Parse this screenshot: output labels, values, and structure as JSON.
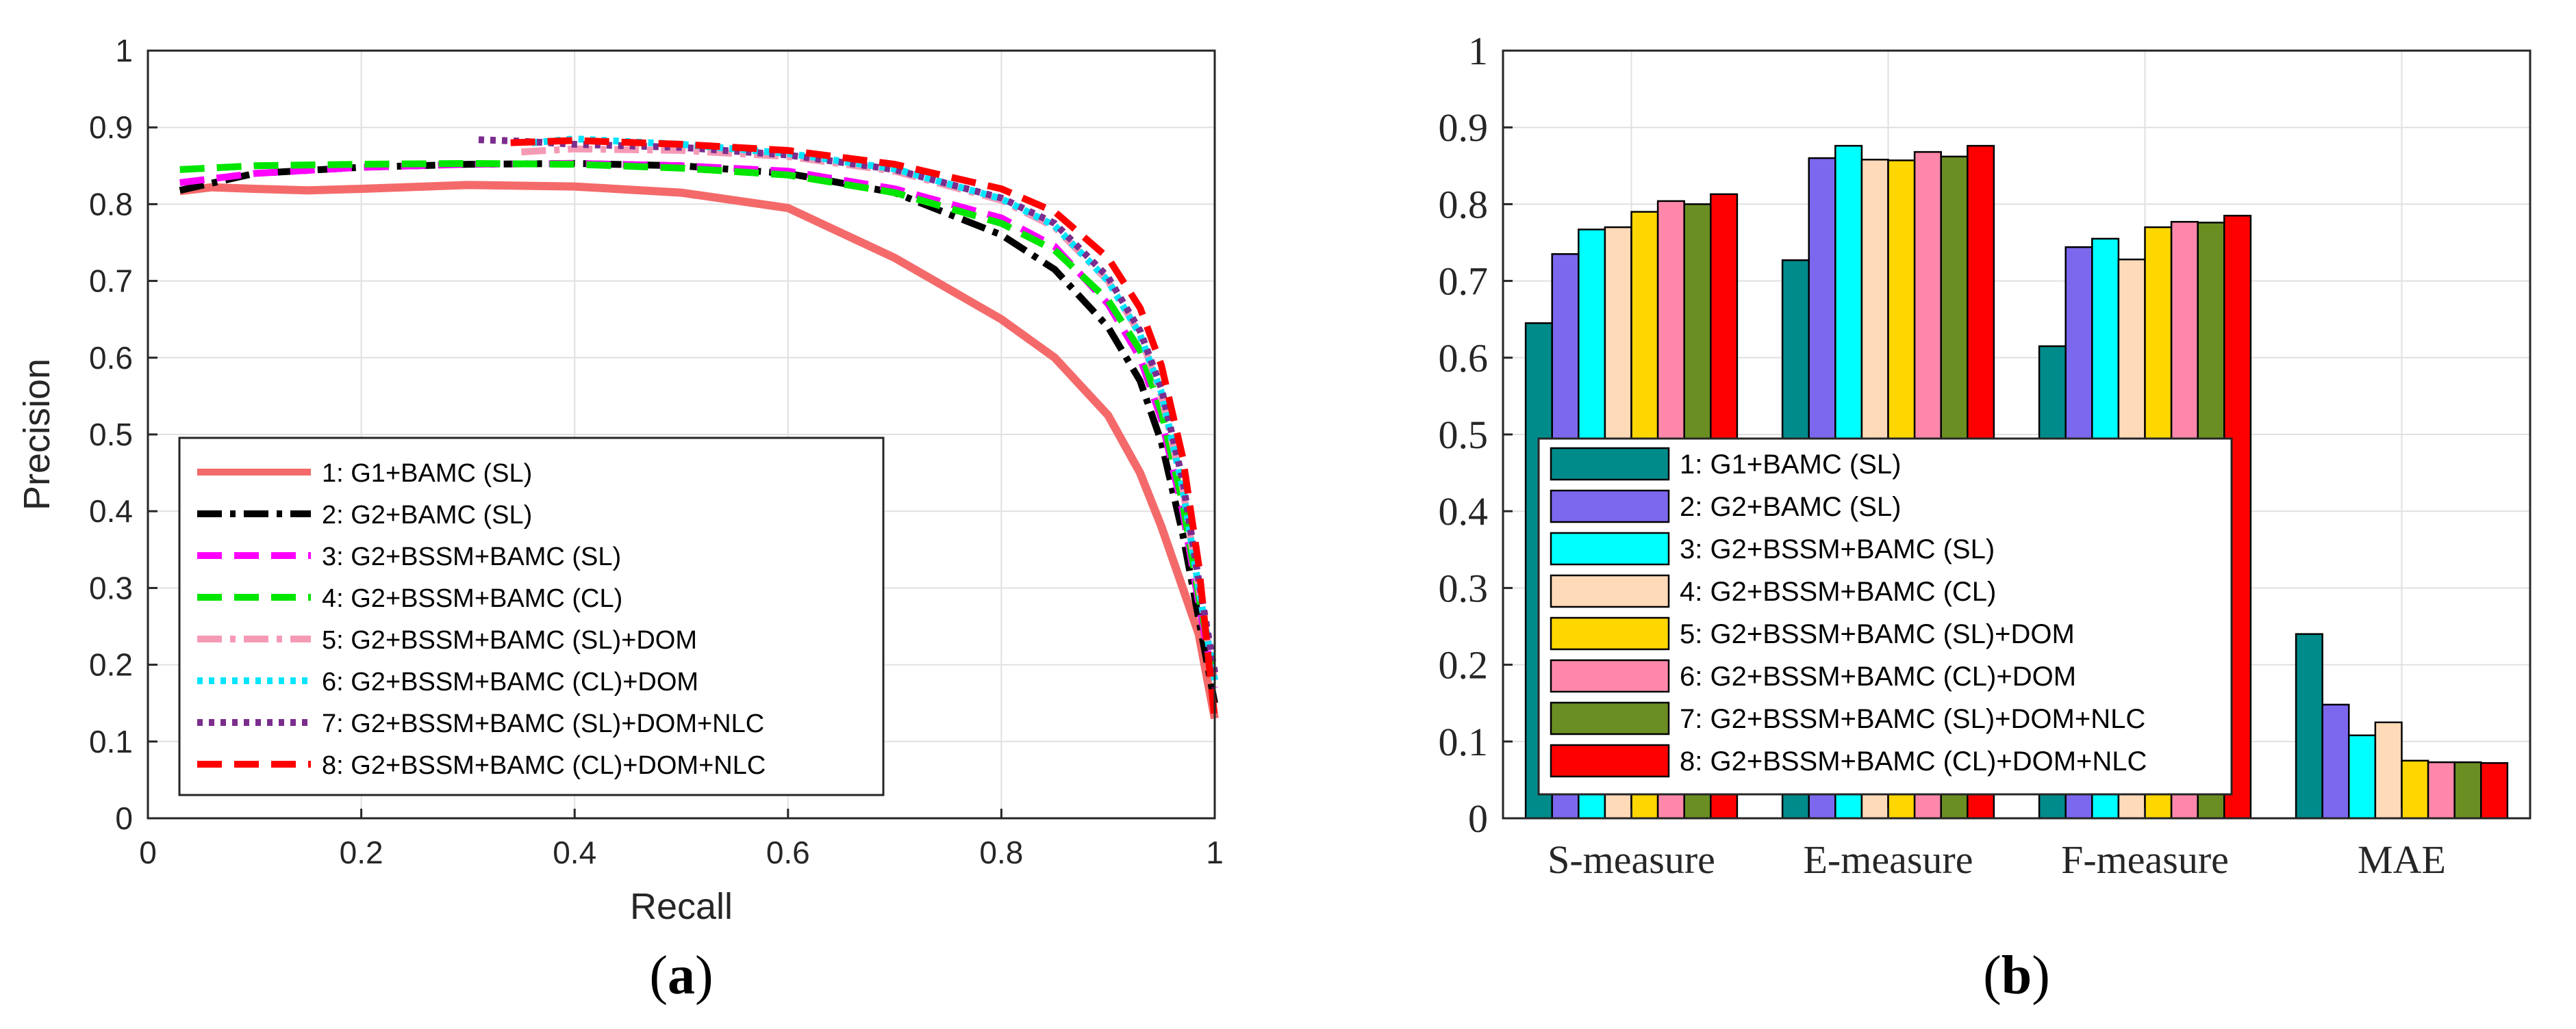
{
  "chart_data": [
    {
      "type": "line",
      "caption": "a",
      "xlabel": "Recall",
      "ylabel": "Precision",
      "xlim": [
        0,
        1
      ],
      "ylim": [
        0,
        1
      ],
      "xticks": [
        "0",
        "0.2",
        "0.4",
        "0.6",
        "0.8",
        "1"
      ],
      "yticks": [
        "0",
        "0.1",
        "0.2",
        "0.3",
        "0.4",
        "0.5",
        "0.6",
        "0.7",
        "0.8",
        "0.9",
        "1"
      ],
      "grid": true,
      "legend_position": "bottom-left",
      "series": [
        {
          "name": "1: G1+BAMC (SL)",
          "color": "#f46a6a",
          "dash": "solid",
          "points": [
            [
              0.03,
              0.817
            ],
            [
              0.06,
              0.822
            ],
            [
              0.1,
              0.82
            ],
            [
              0.15,
              0.818
            ],
            [
              0.2,
              0.82
            ],
            [
              0.3,
              0.825
            ],
            [
              0.4,
              0.823
            ],
            [
              0.5,
              0.815
            ],
            [
              0.6,
              0.795
            ],
            [
              0.7,
              0.73
            ],
            [
              0.8,
              0.65
            ],
            [
              0.85,
              0.6
            ],
            [
              0.9,
              0.525
            ],
            [
              0.93,
              0.45
            ],
            [
              0.95,
              0.38
            ],
            [
              0.97,
              0.3
            ],
            [
              0.985,
              0.24
            ],
            [
              1.0,
              0.13
            ]
          ]
        },
        {
          "name": "2: G2+BAMC (SL)",
          "color": "#000000",
          "dash": "dashdot",
          "points": [
            [
              0.03,
              0.818
            ],
            [
              0.1,
              0.84
            ],
            [
              0.2,
              0.848
            ],
            [
              0.3,
              0.852
            ],
            [
              0.4,
              0.853
            ],
            [
              0.5,
              0.85
            ],
            [
              0.6,
              0.84
            ],
            [
              0.7,
              0.815
            ],
            [
              0.8,
              0.76
            ],
            [
              0.85,
              0.715
            ],
            [
              0.9,
              0.64
            ],
            [
              0.93,
              0.57
            ],
            [
              0.95,
              0.49
            ],
            [
              0.97,
              0.37
            ],
            [
              0.985,
              0.26
            ],
            [
              1.0,
              0.15
            ]
          ]
        },
        {
          "name": "3: G2+BSSM+BAMC (SL)",
          "color": "#ff00ff",
          "dash": "dash",
          "points": [
            [
              0.03,
              0.828
            ],
            [
              0.1,
              0.84
            ],
            [
              0.2,
              0.848
            ],
            [
              0.3,
              0.852
            ],
            [
              0.4,
              0.853
            ],
            [
              0.5,
              0.85
            ],
            [
              0.6,
              0.843
            ],
            [
              0.7,
              0.82
            ],
            [
              0.8,
              0.782
            ],
            [
              0.85,
              0.745
            ],
            [
              0.9,
              0.67
            ],
            [
              0.93,
              0.6
            ],
            [
              0.95,
              0.52
            ],
            [
              0.97,
              0.4
            ],
            [
              0.985,
              0.28
            ],
            [
              1.0,
              0.17
            ]
          ]
        },
        {
          "name": "4: G2+BSSM+BAMC (CL)",
          "color": "#00e600",
          "dash": "dash",
          "points": [
            [
              0.03,
              0.845
            ],
            [
              0.1,
              0.85
            ],
            [
              0.2,
              0.852
            ],
            [
              0.3,
              0.853
            ],
            [
              0.4,
              0.852
            ],
            [
              0.5,
              0.847
            ],
            [
              0.6,
              0.838
            ],
            [
              0.7,
              0.815
            ],
            [
              0.8,
              0.775
            ],
            [
              0.85,
              0.74
            ],
            [
              0.9,
              0.675
            ],
            [
              0.93,
              0.61
            ],
            [
              0.95,
              0.53
            ],
            [
              0.97,
              0.41
            ],
            [
              0.985,
              0.29
            ],
            [
              1.0,
              0.18
            ]
          ]
        },
        {
          "name": "5: G2+BSSM+BAMC (SL)+DOM",
          "color": "#f59ab5",
          "dash": "dashdot",
          "points": [
            [
              0.35,
              0.868
            ],
            [
              0.4,
              0.872
            ],
            [
              0.5,
              0.87
            ],
            [
              0.6,
              0.862
            ],
            [
              0.7,
              0.843
            ],
            [
              0.8,
              0.805
            ],
            [
              0.85,
              0.77
            ],
            [
              0.9,
              0.7
            ],
            [
              0.93,
              0.63
            ],
            [
              0.95,
              0.55
            ],
            [
              0.97,
              0.43
            ],
            [
              0.985,
              0.3
            ],
            [
              1.0,
              0.18
            ]
          ]
        },
        {
          "name": "6: G2+BSSM+BAMC (CL)+DOM",
          "color": "#00e5ff",
          "dash": "dot",
          "points": [
            [
              0.36,
              0.88
            ],
            [
              0.4,
              0.885
            ],
            [
              0.5,
              0.878
            ],
            [
              0.6,
              0.866
            ],
            [
              0.7,
              0.846
            ],
            [
              0.8,
              0.807
            ],
            [
              0.85,
              0.772
            ],
            [
              0.9,
              0.7
            ],
            [
              0.93,
              0.63
            ],
            [
              0.95,
              0.555
            ],
            [
              0.97,
              0.43
            ],
            [
              0.985,
              0.3
            ],
            [
              1.0,
              0.18
            ]
          ]
        },
        {
          "name": "7: G2+BSSM+BAMC (SL)+DOM+NLC",
          "color": "#7b2d8e",
          "dash": "dot",
          "points": [
            [
              0.31,
              0.884
            ],
            [
              0.35,
              0.882
            ],
            [
              0.4,
              0.878
            ],
            [
              0.5,
              0.874
            ],
            [
              0.6,
              0.864
            ],
            [
              0.7,
              0.845
            ],
            [
              0.8,
              0.808
            ],
            [
              0.85,
              0.775
            ],
            [
              0.9,
              0.705
            ],
            [
              0.93,
              0.635
            ],
            [
              0.95,
              0.56
            ],
            [
              0.97,
              0.44
            ],
            [
              0.985,
              0.31
            ],
            [
              1.0,
              0.19
            ]
          ]
        },
        {
          "name": "8: G2+BSSM+BAMC (CL)+DOM+NLC",
          "color": "#ff0000",
          "dash": "dash",
          "points": [
            [
              0.34,
              0.88
            ],
            [
              0.4,
              0.883
            ],
            [
              0.5,
              0.878
            ],
            [
              0.6,
              0.87
            ],
            [
              0.7,
              0.852
            ],
            [
              0.8,
              0.82
            ],
            [
              0.85,
              0.79
            ],
            [
              0.9,
              0.73
            ],
            [
              0.93,
              0.665
            ],
            [
              0.95,
              0.59
            ],
            [
              0.97,
              0.47
            ],
            [
              0.985,
              0.33
            ],
            [
              1.0,
              0.13
            ]
          ]
        }
      ]
    },
    {
      "type": "bar",
      "caption": "b",
      "categories": [
        "S-measure",
        "E-measure",
        "F-measure",
        "MAE"
      ],
      "ylim": [
        0,
        1
      ],
      "yticks": [
        "0",
        "0.1",
        "0.2",
        "0.3",
        "0.4",
        "0.5",
        "0.6",
        "0.7",
        "0.8",
        "0.9",
        "1"
      ],
      "grid": true,
      "legend_position": "center-left",
      "series": [
        {
          "name": "1: G1+BAMC (SL)",
          "color": "#008b8b",
          "values": [
            0.645,
            0.727,
            0.615,
            0.24
          ]
        },
        {
          "name": "2: G2+BAMC (SL)",
          "color": "#7b68ee",
          "values": [
            0.735,
            0.86,
            0.744,
            0.148
          ]
        },
        {
          "name": "3: G2+BSSM+BAMC (SL)",
          "color": "#00ffff",
          "values": [
            0.767,
            0.876,
            0.755,
            0.108
          ]
        },
        {
          "name": "4: G2+BSSM+BAMC (CL)",
          "color": "#ffdab9",
          "values": [
            0.77,
            0.858,
            0.728,
            0.125
          ]
        },
        {
          "name": "5: G2+BSSM+BAMC (SL)+DOM",
          "color": "#ffd700",
          "values": [
            0.79,
            0.857,
            0.77,
            0.075
          ]
        },
        {
          "name": "6: G2+BSSM+BAMC (CL)+DOM",
          "color": "#ff88aa",
          "values": [
            0.804,
            0.868,
            0.777,
            0.073
          ]
        },
        {
          "name": "7: G2+BSSM+BAMC (SL)+DOM+NLC",
          "color": "#6b8e23",
          "values": [
            0.8,
            0.862,
            0.776,
            0.073
          ]
        },
        {
          "name": "8: G2+BSSM+BAMC (CL)+DOM+NLC",
          "color": "#ff0000",
          "values": [
            0.813,
            0.876,
            0.785,
            0.072
          ]
        }
      ]
    }
  ]
}
